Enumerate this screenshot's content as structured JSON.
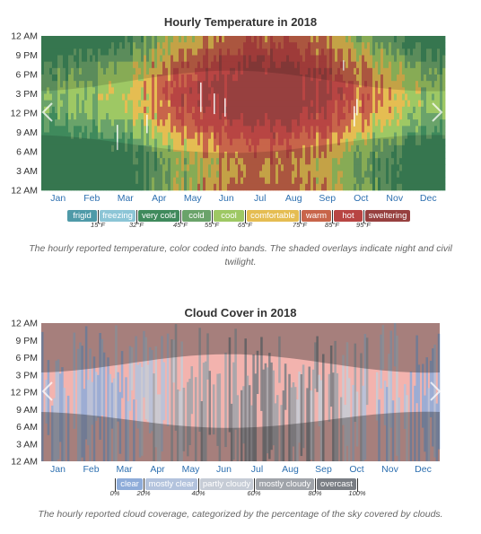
{
  "temperature": {
    "title": "Hourly Temperature in 2018",
    "caption": "The hourly reported temperature, color coded into bands. The shaded overlays indicate night and civil twilight.",
    "y_ticks": [
      "12 AM",
      "9 PM",
      "6 PM",
      "3 PM",
      "12 PM",
      "9 AM",
      "6 AM",
      "3 AM",
      "12 AM"
    ],
    "x_ticks": [
      "Jan",
      "Feb",
      "Mar",
      "Apr",
      "May",
      "Jun",
      "Jul",
      "Aug",
      "Sep",
      "Oct",
      "Nov",
      "Dec"
    ],
    "legend": [
      {
        "label": "frigid",
        "color": "#4f9aa8"
      },
      {
        "label": "freezing",
        "color": "#8cc5d6"
      },
      {
        "label": "very cold",
        "color": "#3f8a5c"
      },
      {
        "label": "cold",
        "color": "#6aa36a"
      },
      {
        "label": "cool",
        "color": "#9ec864"
      },
      {
        "label": "comfortable",
        "color": "#e5bd52"
      },
      {
        "label": "warm",
        "color": "#c8654a"
      },
      {
        "label": "hot",
        "color": "#b84543"
      },
      {
        "label": "sweltering",
        "color": "#97403f"
      }
    ],
    "legend_ticks": [
      "15°F",
      "32°F",
      "45°F",
      "55°F",
      "65°F",
      "75°F",
      "85°F",
      "95°F"
    ]
  },
  "cloud": {
    "title": "Cloud Cover in 2018",
    "caption": "The hourly reported cloud coverage, categorized by the percentage of the sky covered by clouds.",
    "y_ticks": [
      "12 AM",
      "9 PM",
      "6 PM",
      "3 PM",
      "12 PM",
      "9 AM",
      "6 AM",
      "3 AM",
      "12 AM"
    ],
    "x_ticks": [
      "Jan",
      "Feb",
      "Mar",
      "Apr",
      "May",
      "Jun",
      "Jul",
      "Aug",
      "Sep",
      "Oct",
      "Nov",
      "Dec"
    ],
    "legend": [
      {
        "label": "clear",
        "color": "#8eacd9"
      },
      {
        "label": "mostly clear",
        "color": "#b3c3dd"
      },
      {
        "label": "partly cloudy",
        "color": "#c6ccd6"
      },
      {
        "label": "mostly cloudy",
        "color": "#a0a4aa"
      },
      {
        "label": "overcast",
        "color": "#7a7e84"
      }
    ],
    "legend_ticks": [
      "0%",
      "20%",
      "40%",
      "60%",
      "80%",
      "100%"
    ]
  },
  "chart_data": [
    {
      "type": "heatmap",
      "title": "Hourly Temperature in 2018",
      "x": [
        "Jan",
        "Feb",
        "Mar",
        "Apr",
        "May",
        "Jun",
        "Jul",
        "Aug",
        "Sep",
        "Oct",
        "Nov",
        "Dec"
      ],
      "y": [
        "12 AM",
        "9 PM",
        "6 PM",
        "3 PM",
        "12 PM",
        "9 AM",
        "6 AM",
        "3 AM",
        "12 AM"
      ],
      "bands": [
        "frigid",
        "freezing",
        "very cold",
        "cold",
        "cool",
        "comfortable",
        "warm",
        "hot",
        "sweltering"
      ],
      "band_thresholds_F": [
        15,
        32,
        45,
        55,
        65,
        75,
        85,
        95
      ],
      "monthly_afternoon_band": [
        "cool",
        "comfortable",
        "warm",
        "warm",
        "hot",
        "hot",
        "sweltering",
        "hot",
        "hot",
        "warm",
        "comfortable",
        "cool"
      ],
      "monthly_night_band": [
        "very cold",
        "very cold",
        "cold",
        "cool",
        "comfortable",
        "warm",
        "warm",
        "warm",
        "warm",
        "cool",
        "cold",
        "very cold"
      ]
    },
    {
      "type": "heatmap",
      "title": "Cloud Cover in 2018",
      "x": [
        "Jan",
        "Feb",
        "Mar",
        "Apr",
        "May",
        "Jun",
        "Jul",
        "Aug",
        "Sep",
        "Oct",
        "Nov",
        "Dec"
      ],
      "y": [
        "12 AM",
        "9 PM",
        "6 PM",
        "3 PM",
        "12 PM",
        "9 AM",
        "6 AM",
        "3 AM",
        "12 AM"
      ],
      "bands": [
        "clear",
        "mostly clear",
        "partly cloudy",
        "mostly cloudy",
        "overcast"
      ],
      "band_thresholds_pct": [
        0,
        20,
        40,
        60,
        80,
        100
      ],
      "monthly_typical_band": [
        "mostly clear",
        "mostly clear",
        "mostly clear",
        "mostly clear",
        "partly cloudy",
        "mostly cloudy",
        "overcast",
        "mostly cloudy",
        "partly cloudy",
        "mostly clear",
        "clear",
        "clear"
      ]
    }
  ]
}
